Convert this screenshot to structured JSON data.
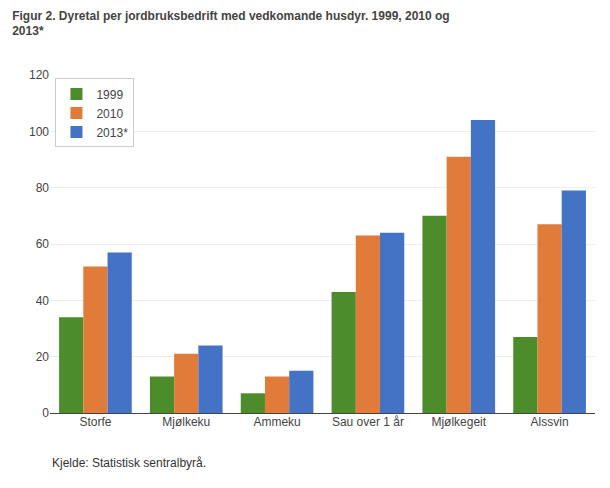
{
  "chart_data": {
    "type": "bar",
    "title": "Figur 2. Dyretal per jordbruksbedrift med vedkomande husdyr. 1999, 2010 og\n2013*",
    "categories": [
      "Storfe",
      "Mjølkeku",
      "Ammeku",
      "Sau over 1 år",
      "Mjølkegeit",
      "Alssvin"
    ],
    "series": [
      {
        "name": "1999",
        "color": "#4d8c2b",
        "values": [
          34,
          13,
          7,
          43,
          70,
          27
        ]
      },
      {
        "name": "2010",
        "color": "#e07b39",
        "values": [
          52,
          21,
          13,
          63,
          91,
          67
        ]
      },
      {
        "name": "2013*",
        "color": "#4472c4",
        "values": [
          57,
          24,
          15,
          64,
          104,
          79
        ]
      }
    ],
    "ylim": [
      0,
      120
    ],
    "yticks": [
      0,
      20,
      40,
      60,
      80,
      100,
      120
    ],
    "grid": true,
    "legend": "upper left",
    "annotations": [
      "Kjelde: Statistisk sentralbyrå."
    ]
  }
}
